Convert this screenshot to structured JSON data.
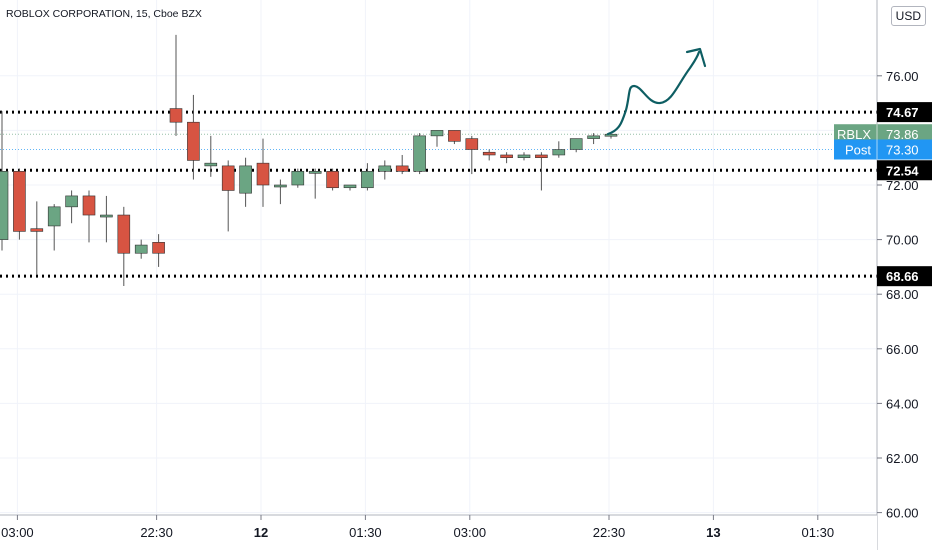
{
  "header": {
    "title": "ROBLOX CORPORATION, 15, Cboe BZX",
    "currency": "USD"
  },
  "chart_data": {
    "type": "candlestick",
    "y_ticks": [
      60,
      62,
      64,
      66,
      68,
      70,
      72,
      74,
      76
    ],
    "ylim": [
      60,
      77.6
    ],
    "x_ticks": [
      {
        "label": "03:00",
        "bold": false,
        "idx": 1
      },
      {
        "label": "22:30",
        "bold": false,
        "idx": 9
      },
      {
        "label": "12",
        "bold": true,
        "idx": 15
      },
      {
        "label": "01:30",
        "bold": false,
        "idx": 21
      },
      {
        "label": "03:00",
        "bold": false,
        "idx": 27
      },
      {
        "label": "22:30",
        "bold": false,
        "idx": 35
      },
      {
        "label": "13",
        "bold": true,
        "idx": 41
      },
      {
        "label": "01:30",
        "bold": false,
        "idx": 47
      }
    ],
    "candles": [
      {
        "o": 70.0,
        "h": 74.7,
        "l": 69.6,
        "c": 72.5
      },
      {
        "o": 72.5,
        "h": 72.6,
        "l": 70.0,
        "c": 70.3
      },
      {
        "o": 70.4,
        "h": 71.4,
        "l": 68.7,
        "c": 70.3
      },
      {
        "o": 70.5,
        "h": 71.3,
        "l": 69.6,
        "c": 71.2
      },
      {
        "o": 71.2,
        "h": 71.8,
        "l": 70.6,
        "c": 71.6
      },
      {
        "o": 71.6,
        "h": 71.8,
        "l": 69.9,
        "c": 70.9
      },
      {
        "o": 70.9,
        "h": 71.6,
        "l": 69.9,
        "c": 70.9
      },
      {
        "o": 70.9,
        "h": 71.2,
        "l": 68.3,
        "c": 69.5
      },
      {
        "o": 69.5,
        "h": 70.0,
        "l": 69.3,
        "c": 69.8
      },
      {
        "o": 69.9,
        "h": 70.2,
        "l": 69.0,
        "c": 69.5
      },
      {
        "o": 74.8,
        "h": 77.5,
        "l": 73.8,
        "c": 74.3
      },
      {
        "o": 74.3,
        "h": 75.3,
        "l": 72.2,
        "c": 72.9
      },
      {
        "o": 72.7,
        "h": 73.8,
        "l": 72.3,
        "c": 72.8
      },
      {
        "o": 72.7,
        "h": 72.9,
        "l": 70.3,
        "c": 71.8
      },
      {
        "o": 71.7,
        "h": 73.0,
        "l": 71.2,
        "c": 72.7
      },
      {
        "o": 72.8,
        "h": 73.7,
        "l": 71.2,
        "c": 72.0
      },
      {
        "o": 72.0,
        "h": 72.2,
        "l": 71.3,
        "c": 72.0
      },
      {
        "o": 72.0,
        "h": 72.6,
        "l": 71.9,
        "c": 72.5
      },
      {
        "o": 72.5,
        "h": 72.6,
        "l": 71.5,
        "c": 72.5
      },
      {
        "o": 72.5,
        "h": 72.6,
        "l": 71.8,
        "c": 71.9
      },
      {
        "o": 71.9,
        "h": 72.0,
        "l": 71.8,
        "c": 72.0
      },
      {
        "o": 71.9,
        "h": 72.8,
        "l": 71.8,
        "c": 72.5
      },
      {
        "o": 72.5,
        "h": 72.9,
        "l": 72.2,
        "c": 72.7
      },
      {
        "o": 72.7,
        "h": 73.1,
        "l": 72.4,
        "c": 72.5
      },
      {
        "o": 72.5,
        "h": 73.9,
        "l": 72.4,
        "c": 73.8
      },
      {
        "o": 73.8,
        "h": 74.0,
        "l": 73.4,
        "c": 74.0
      },
      {
        "o": 74.0,
        "h": 74.0,
        "l": 73.5,
        "c": 73.6
      },
      {
        "o": 73.7,
        "h": 73.8,
        "l": 72.4,
        "c": 73.3
      },
      {
        "o": 73.2,
        "h": 73.3,
        "l": 72.9,
        "c": 73.1
      },
      {
        "o": 73.1,
        "h": 73.2,
        "l": 72.8,
        "c": 73.0
      },
      {
        "o": 73.0,
        "h": 73.2,
        "l": 72.9,
        "c": 73.1
      },
      {
        "o": 73.1,
        "h": 73.2,
        "l": 71.8,
        "c": 73.0
      },
      {
        "o": 73.1,
        "h": 73.6,
        "l": 73.0,
        "c": 73.3
      },
      {
        "o": 73.3,
        "h": 73.7,
        "l": 73.2,
        "c": 73.7
      },
      {
        "o": 73.7,
        "h": 73.9,
        "l": 73.5,
        "c": 73.8
      },
      {
        "o": 73.8,
        "h": 73.9,
        "l": 73.7,
        "c": 73.86
      }
    ],
    "levels": [
      {
        "value": 74.67,
        "label": "74.67"
      },
      {
        "value": 72.54,
        "label": "72.54"
      },
      {
        "value": 68.66,
        "label": "68.66"
      }
    ],
    "price_tags": [
      {
        "name": "RBLX",
        "value": 73.86,
        "label": "73.86",
        "color": "#6ba583"
      },
      {
        "name": "Post",
        "value": 73.3,
        "label": "73.30",
        "color": "#2196f3"
      }
    ],
    "colors": {
      "up": "#6ba583",
      "down": "#d75442",
      "drawing": "#0e5e63",
      "axis": "#787b86"
    }
  }
}
